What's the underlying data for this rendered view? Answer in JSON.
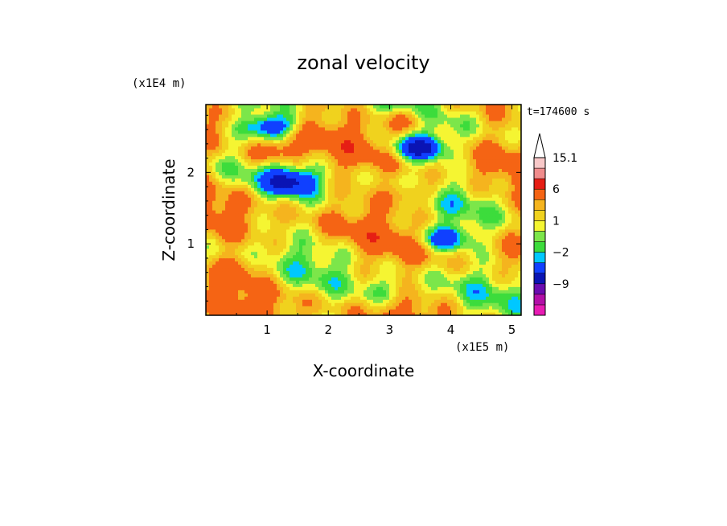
{
  "chart_data": {
    "type": "heatmap",
    "title": "zonal velocity",
    "xlabel": "X-coordinate",
    "ylabel": "Z-coordinate",
    "x_unit": "(x1E5 m)",
    "y_unit": "(x1E4 m)",
    "time_label": "t=174600 s",
    "x_range": [
      0,
      5.15
    ],
    "y_range": [
      0,
      2.95
    ],
    "x_ticks": [
      "1",
      "2",
      "3",
      "4",
      "5"
    ],
    "x_tick_values": [
      1,
      2,
      3,
      4,
      5
    ],
    "y_ticks": [
      "1",
      "2"
    ],
    "y_tick_values": [
      1,
      2
    ],
    "colorbar": {
      "labels": [
        "15.1",
        "6",
        "1",
        "−2",
        "−9"
      ],
      "label_values": [
        15.1,
        6,
        1,
        -2,
        -9
      ],
      "levels": [
        -15,
        -12,
        -9,
        -6,
        -3,
        -2,
        -1,
        0,
        1,
        2,
        3,
        6,
        9,
        12,
        15.1
      ],
      "colors": [
        "#e81cb4",
        "#b30fa8",
        "#6a0cb0",
        "#0a14b4",
        "#1040ff",
        "#00c8ff",
        "#3cdc3c",
        "#7ce64a",
        "#f5f532",
        "#f0d21e",
        "#f5b41e",
        "#f56414",
        "#e61e14",
        "#f08c8c",
        "#f8c8c8"
      ],
      "extend": "max"
    },
    "features": [
      {
        "x": 1.05,
        "z": 2.65,
        "u": -7
      },
      {
        "x": 3.5,
        "z": 2.35,
        "u": -8.5
      },
      {
        "x": 1.4,
        "z": 1.88,
        "u": -6.5
      },
      {
        "x": 3.9,
        "z": 1.08,
        "u": -6
      },
      {
        "x": 1.1,
        "z": 2.3,
        "u": 4.5
      },
      {
        "x": 3.3,
        "z": 2.75,
        "u": 3.5
      },
      {
        "x": 3.4,
        "z": 1.72,
        "u": 3.2
      },
      {
        "x": 2.9,
        "z": 0.35,
        "u": -2.2
      },
      {
        "x": 0.6,
        "z": 0.7,
        "u": 1.8
      }
    ]
  }
}
